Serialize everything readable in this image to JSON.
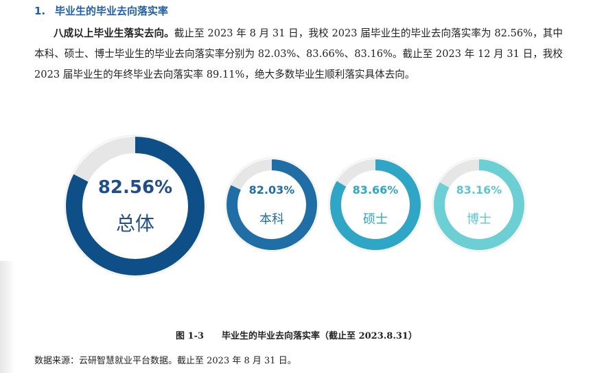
{
  "section": {
    "number": "1.",
    "title": "毕业生的毕业去向落实率"
  },
  "paragraph": {
    "lead": "八成以上毕业生落实去向。",
    "text": "截止至 2023 年 8 月 31 日，我校 2023 届毕业生的毕业去向落实率为 82.56%，其中本科、硕士、博士毕业生的毕业去向落实率分别为 82.03%、83.66%、83.16%。截止至 2023 年 12 月 31 日，我校 2023 届毕业生的年终毕业去向落实率 89.11%，绝大多数毕业生顺利落实具体去向。"
  },
  "donuts": [
    {
      "label": "总体",
      "value_text": "82.56%",
      "value": 82.56,
      "color": "#0f4f87"
    },
    {
      "label": "本科",
      "value_text": "82.03%",
      "value": 82.03,
      "color": "#1f6ea5"
    },
    {
      "label": "硕士",
      "value_text": "83.66%",
      "value": 83.66,
      "color": "#2fa6c6"
    },
    {
      "label": "博士",
      "value_text": "83.16%",
      "value": 83.16,
      "color": "#6ccfd3"
    }
  ],
  "colors": {
    "heading": "#1f5fa6",
    "track": "#e6e6e6",
    "label_text": "#1f6ea5"
  },
  "caption": {
    "figure_no": "图 1-3",
    "title": "毕业生的毕业去向落实率（截止至 2023.8.31）"
  },
  "source": "数据来源：云研智慧就业平台数据。截止至 2023 年 8 月 31 日。"
}
